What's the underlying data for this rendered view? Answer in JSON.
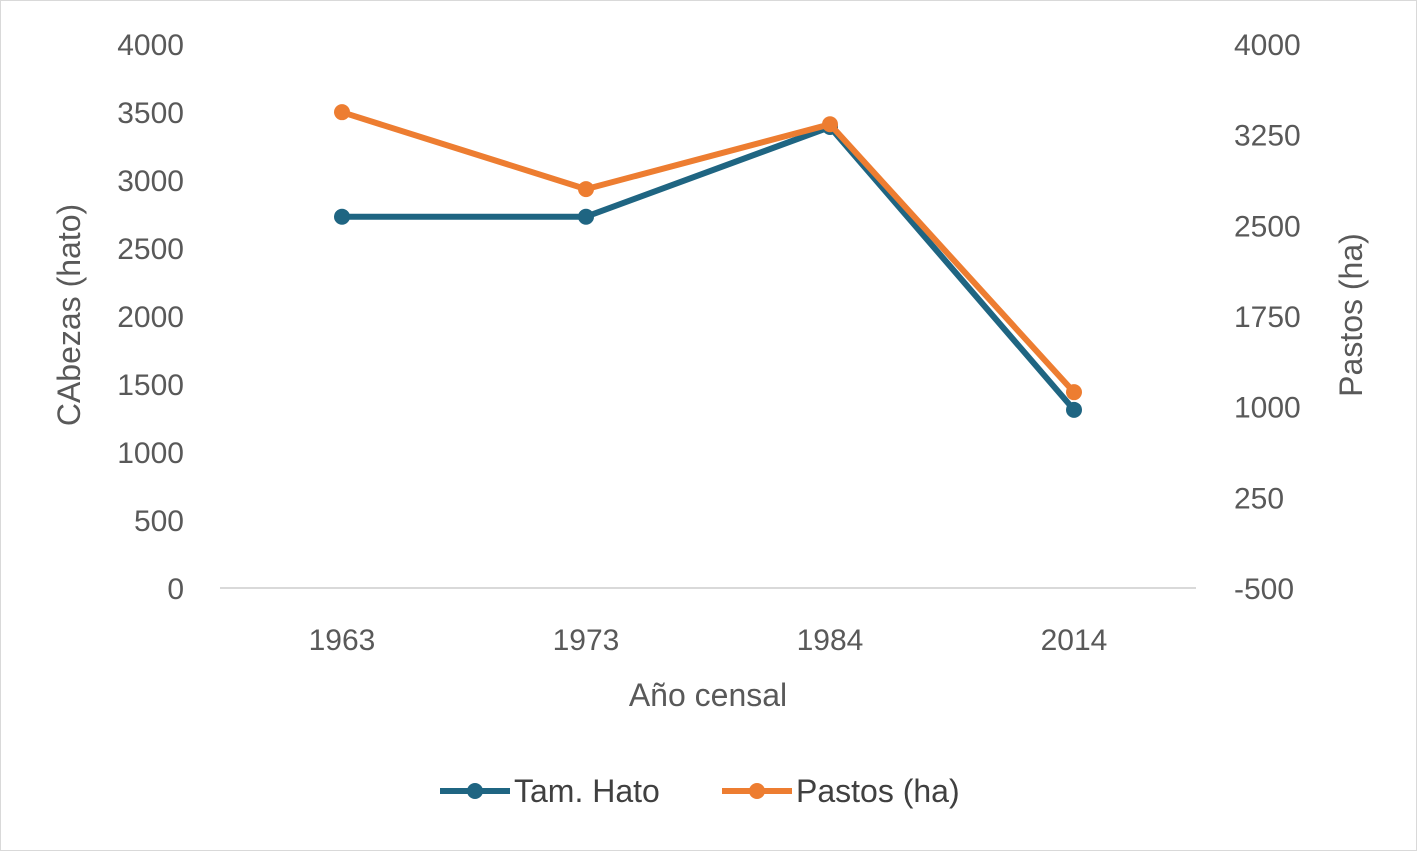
{
  "chart_data": {
    "type": "line",
    "title": "",
    "categories": [
      "1963",
      "1973",
      "1984",
      "2014"
    ],
    "xlabel": "Año censal",
    "ylabel_left": "CAbezas (hato)",
    "ylabel_right": "Pastos (ha)",
    "ylim_left": [
      0,
      4000
    ],
    "yticks_left": [
      "0",
      "500",
      "1000",
      "1500",
      "2000",
      "2500",
      "3000",
      "3500",
      "4000"
    ],
    "ylim_right": [
      -500,
      4000
    ],
    "yticks_right": [
      "-500",
      "250",
      "1000",
      "1750",
      "2500",
      "3250",
      "4000"
    ],
    "grid": false,
    "legend_position": "bottom",
    "series": [
      {
        "name": "Tam. Hato",
        "axis": "left",
        "color": "#1f6582",
        "values": [
          2730,
          2730,
          3390,
          1310
        ]
      },
      {
        "name": "Pastos (ha)",
        "axis": "right",
        "color": "#ed7d31",
        "values": [
          3436,
          2800,
          3336,
          1120
        ]
      }
    ]
  }
}
